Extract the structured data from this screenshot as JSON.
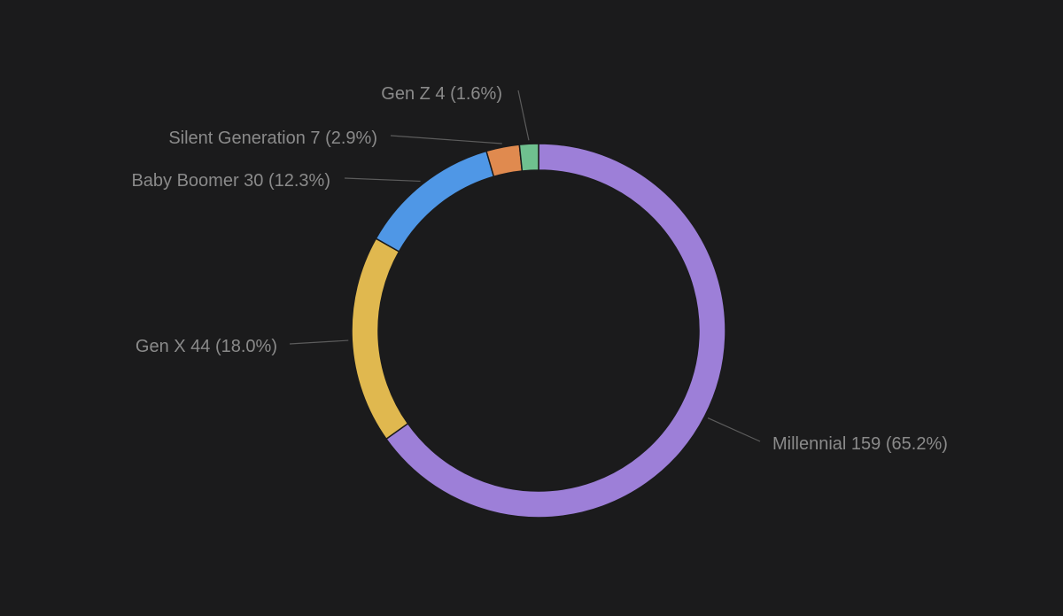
{
  "chart_data": {
    "type": "pie",
    "variant": "donut",
    "title": "",
    "series": [
      {
        "name": "Millennial",
        "value": 159,
        "percent": "65.2%",
        "color": "#9d7fd8",
        "label_side": "right"
      },
      {
        "name": "Gen X",
        "value": 44,
        "percent": "18.0%",
        "color": "#e0b84f",
        "label_side": "left"
      },
      {
        "name": "Baby Boomer",
        "value": 30,
        "percent": "12.3%",
        "color": "#4f97e6",
        "label_side": "left"
      },
      {
        "name": "Silent Generation",
        "value": 7,
        "percent": "2.9%",
        "color": "#e08a4f",
        "label_side": "left"
      },
      {
        "name": "Gen Z",
        "value": 4,
        "percent": "1.6%",
        "color": "#6fc08f",
        "label_side": "left"
      }
    ],
    "legend": "none",
    "start": "top",
    "direction": "clockwise"
  },
  "colors": {
    "background": "#1b1b1c",
    "label_text": "#8a8a8a",
    "leader_line": "#5c5c5c"
  }
}
